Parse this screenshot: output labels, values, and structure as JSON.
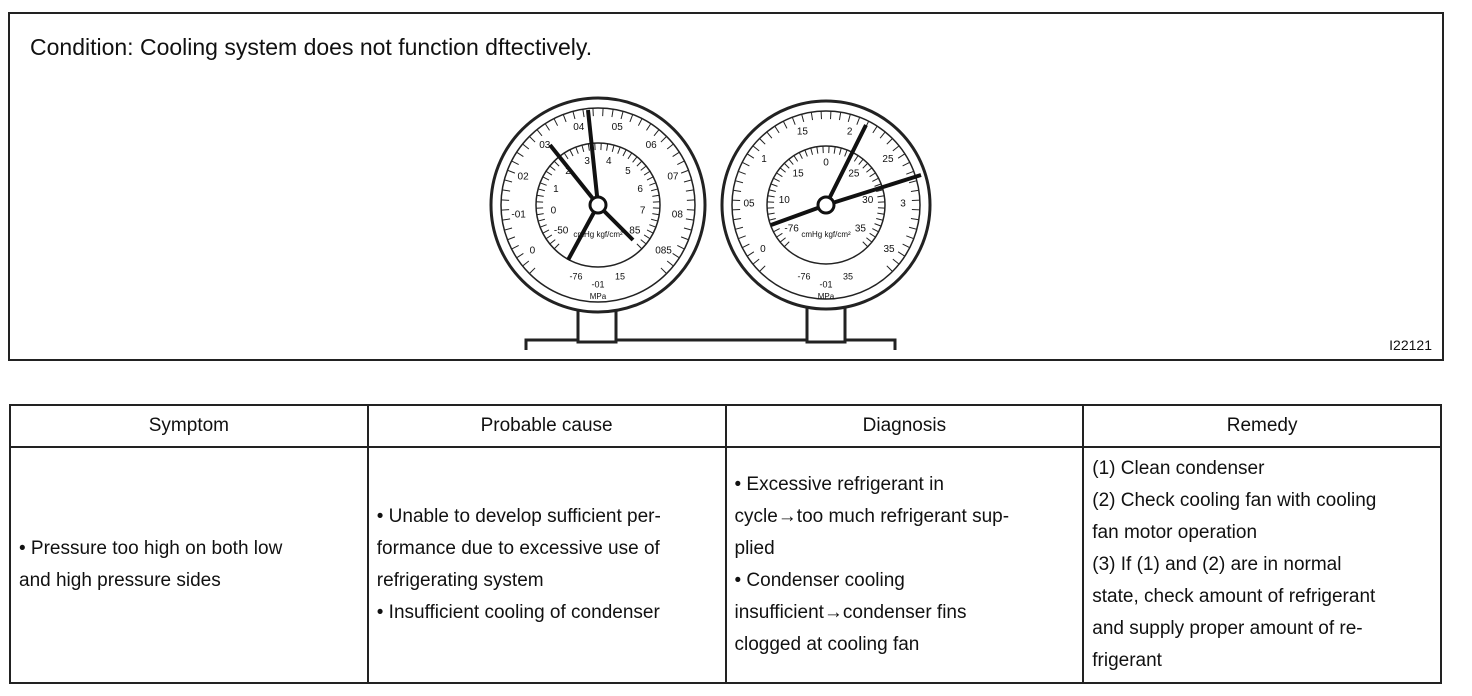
{
  "header": {
    "title": "Condition: Cooling system does not function dftectively.",
    "figure_id": "I22121"
  },
  "gauges": [
    {
      "outer": [
        "0",
        "-01",
        "02",
        "03",
        "04",
        "05",
        "06",
        "07",
        "08",
        "085"
      ],
      "inner": [
        "-50",
        "0",
        "1",
        "2",
        "3",
        "4",
        "5",
        "6",
        "7",
        "85"
      ],
      "bottom": [
        "-76",
        "-01",
        "15"
      ],
      "units": "cmHg kgf/cm²",
      "mpa": "MPa"
    },
    {
      "outer": [
        "0",
        "05",
        "1",
        "15",
        "2",
        "25",
        "3",
        "35"
      ],
      "inner": [
        "-76",
        "10",
        "15",
        "0",
        "25",
        "30",
        "35"
      ],
      "bottom": [
        "-76",
        "-01",
        "35"
      ],
      "units": "cmHg kgf/cm²",
      "mpa": "MPa"
    }
  ],
  "table": {
    "headers": [
      "Symptom",
      "Probable cause",
      "Diagnosis",
      "Remedy"
    ],
    "rows": [
      [
        [
          "• Pressure too high on both low",
          "and high pressure sides"
        ],
        [
          "• Unable to develop sufficient per-",
          "formance due to excessive use of",
          "refrigerating system",
          "• Insufficient cooling of condenser"
        ],
        [
          "• Excessive refrigerant in",
          "cycle→too much refrigerant sup-",
          "plied",
          "• Condenser cooling",
          "insufficient→condenser fins",
          "clogged at cooling fan"
        ],
        [
          "(1) Clean condenser",
          "(2) Check cooling fan with cooling",
          "fan motor operation",
          "(3) If (1) and (2) are in normal",
          "state, check amount of refrigerant",
          "and supply proper amount of re-",
          "frigerant"
        ]
      ]
    ]
  }
}
